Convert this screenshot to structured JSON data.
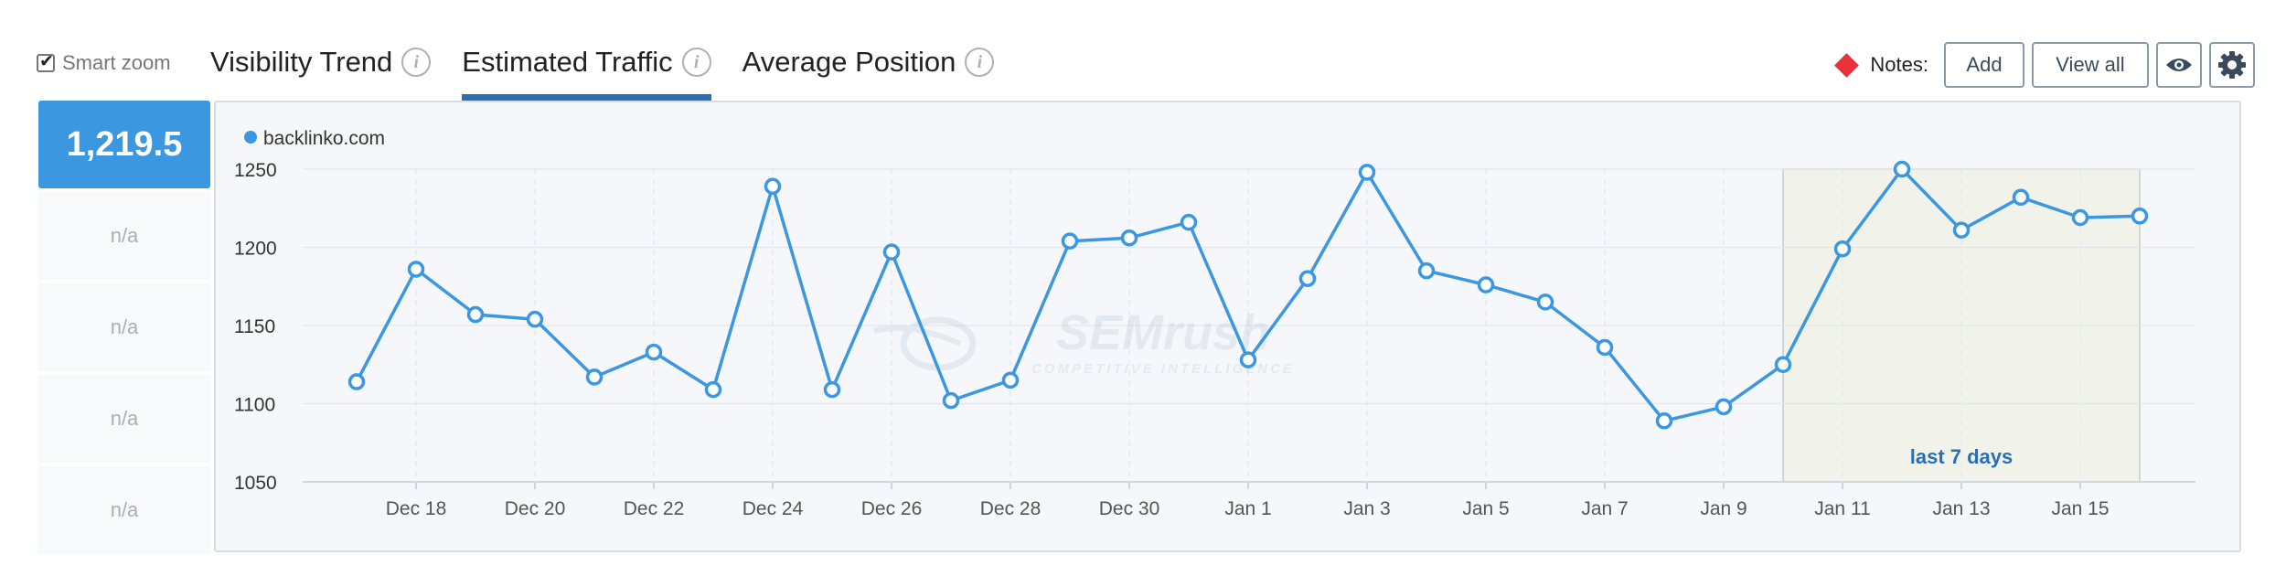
{
  "toolbar": {
    "smart_zoom_label": "Smart zoom",
    "smart_zoom_checked": true,
    "tabs": [
      {
        "label": "Visibility Trend",
        "active": false
      },
      {
        "label": "Estimated Traffic",
        "active": true
      },
      {
        "label": "Average Position",
        "active": false
      }
    ],
    "notes_label": "Notes:",
    "add_label": "Add",
    "view_all_label": "View all"
  },
  "summary": {
    "value": "1,219.5",
    "rows": [
      "n/a",
      "n/a",
      "n/a",
      "n/a"
    ]
  },
  "colors": {
    "accent": "#2a6fb5",
    "series": "#3a97e0",
    "notes_marker": "#ea3138",
    "highlight_band": "#f1f3ea"
  },
  "watermark": {
    "brand": "SEMrush",
    "tagline": "COMPETITIVE INTELLIGENCE"
  },
  "chart_data": {
    "type": "line",
    "legend": [
      "backlinko.com"
    ],
    "x": [
      "Dec 17",
      "Dec 18",
      "Dec 19",
      "Dec 20",
      "Dec 21",
      "Dec 22",
      "Dec 23",
      "Dec 24",
      "Dec 25",
      "Dec 26",
      "Dec 27",
      "Dec 28",
      "Dec 29",
      "Dec 30",
      "Dec 31",
      "Jan 1",
      "Jan 2",
      "Jan 3",
      "Jan 4",
      "Jan 5",
      "Jan 6",
      "Jan 7",
      "Jan 8",
      "Jan 9",
      "Jan 10",
      "Jan 11",
      "Jan 12",
      "Jan 13",
      "Jan 14",
      "Jan 15",
      "Jan 16"
    ],
    "series": [
      {
        "name": "backlinko.com",
        "values": [
          1114,
          1186,
          1157,
          1154,
          1117,
          1133,
          1109,
          1239,
          1109,
          1197,
          1102,
          1115,
          1204,
          1206,
          1216,
          1128,
          1180,
          1248,
          1185,
          1176,
          1165,
          1136,
          1089,
          1098,
          1125,
          1199,
          1250,
          1211,
          1232,
          1219,
          1220
        ]
      }
    ],
    "y_ticks": [
      1050,
      1100,
      1150,
      1200,
      1250
    ],
    "x_tick_labels": [
      "Dec 18",
      "Dec 20",
      "Dec 22",
      "Dec 24",
      "Dec 26",
      "Dec 28",
      "Dec 30",
      "Jan 1",
      "Jan 3",
      "Jan 5",
      "Jan 7",
      "Jan 9",
      "Jan 11",
      "Jan 13",
      "Jan 15"
    ],
    "ylim": [
      1050,
      1250
    ],
    "highlight": {
      "from": "Jan 10",
      "to": "Jan 16",
      "label": "last 7 days"
    },
    "grid": true
  }
}
